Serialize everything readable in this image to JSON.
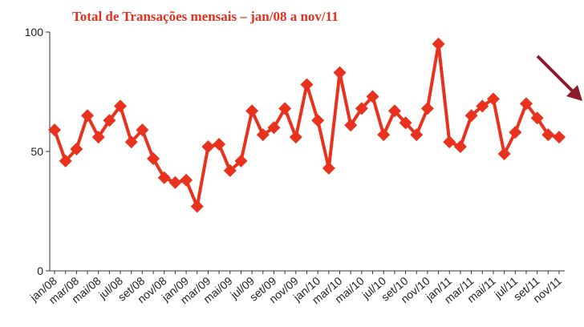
{
  "chart_data": {
    "type": "line",
    "title": "Total de Transações mensais – jan/08 a nov/11",
    "categories": [
      "jan/08",
      null,
      "mar/08",
      null,
      "mai/08",
      null,
      "jul/08",
      null,
      "set/08",
      null,
      "nov/08",
      null,
      "jan/09",
      null,
      "mar/09",
      null,
      "mai/09",
      null,
      "jul/09",
      null,
      "set/09",
      null,
      "nov/09",
      null,
      "jan/10",
      null,
      "mar/10",
      null,
      "mai/10",
      null,
      "jul/10",
      null,
      "set/10",
      null,
      "nov/10",
      null,
      "jan/11",
      null,
      "mar/11",
      null,
      "mai/11",
      null,
      "jul/11",
      null,
      "set/11",
      null,
      "nov/11"
    ],
    "values": [
      59,
      46,
      51,
      65,
      56,
      63,
      69,
      54,
      59,
      47,
      39,
      37,
      38,
      27,
      52,
      53,
      42,
      46,
      67,
      57,
      60,
      68,
      56,
      78,
      63,
      43,
      83,
      61,
      68,
      73,
      57,
      67,
      62,
      57,
      68,
      95,
      54,
      52,
      65,
      69,
      72,
      49,
      58,
      70,
      64,
      57,
      56
    ],
    "color": "#e8321e",
    "ylim": [
      0,
      100
    ],
    "yticks": [
      0,
      50,
      100
    ]
  }
}
